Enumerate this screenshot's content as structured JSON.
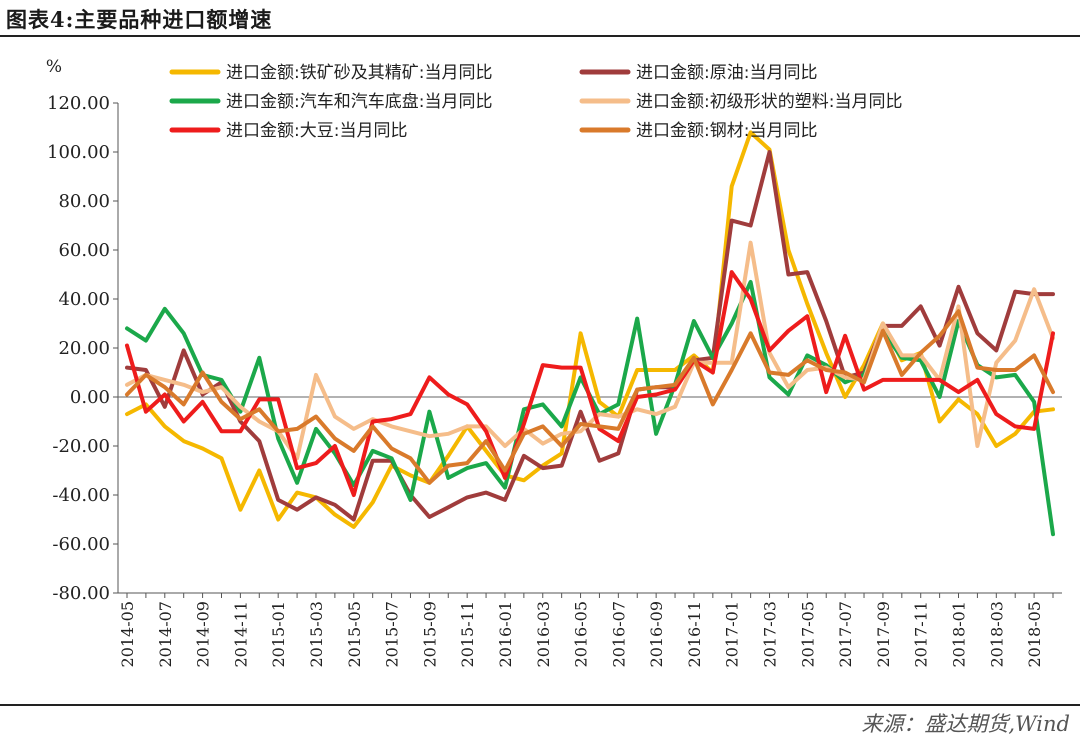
{
  "header": {
    "title": "图表4:主要品种进口额增速"
  },
  "footer": {
    "source": "来源：盛达期货,Wind"
  },
  "chart_data": {
    "type": "line",
    "title": "图表4:主要品种进口额增速",
    "ylabel": "%",
    "ylim": [
      -80,
      120
    ],
    "yticks": [
      -80,
      -60,
      -40,
      -20,
      0,
      20,
      40,
      60,
      80,
      100,
      120
    ],
    "ytick_labels": [
      "-80.00",
      "-60.00",
      "-40.00",
      "-20.00",
      "0.00",
      "20.00",
      "40.00",
      "60.00",
      "80.00",
      "100.00",
      "120.00"
    ],
    "categories": [
      "2014-05",
      "2014-06",
      "2014-07",
      "2014-08",
      "2014-09",
      "2014-10",
      "2014-11",
      "2014-12",
      "2015-01",
      "2015-02",
      "2015-03",
      "2015-04",
      "2015-05",
      "2015-06",
      "2015-07",
      "2015-08",
      "2015-09",
      "2015-10",
      "2015-11",
      "2015-12",
      "2016-01",
      "2016-02",
      "2016-03",
      "2016-04",
      "2016-05",
      "2016-06",
      "2016-07",
      "2016-08",
      "2016-09",
      "2016-10",
      "2016-11",
      "2016-12",
      "2017-01",
      "2017-02",
      "2017-03",
      "2017-04",
      "2017-05",
      "2017-06",
      "2017-07",
      "2017-08",
      "2017-09",
      "2017-10",
      "2017-11",
      "2017-12",
      "2018-01",
      "2018-02",
      "2018-03",
      "2018-04",
      "2018-05",
      "2018-06"
    ],
    "xtick_labels": [
      "2014-05",
      "2014-07",
      "2014-09",
      "2014-11",
      "2015-01",
      "2015-03",
      "2015-05",
      "2015-07",
      "2015-09",
      "2015-11",
      "2016-01",
      "2016-03",
      "2016-05",
      "2016-07",
      "2016-09",
      "2016-11",
      "2017-01",
      "2017-03",
      "2017-05",
      "2017-07",
      "2017-09",
      "2017-11",
      "2018-01",
      "2018-03",
      "2018-05"
    ],
    "grid": false,
    "legend_position": "top",
    "series": [
      {
        "name": "进口金额:铁矿砂及其精矿:当月同比",
        "color": "#f5b800",
        "values": [
          -7,
          -3,
          -12,
          -18,
          -21,
          -25,
          -46,
          -30,
          -50,
          -39,
          -41,
          -48,
          -53,
          -43,
          -28,
          -32,
          -35,
          -24,
          -12,
          -22,
          -32,
          -34,
          -28,
          -23,
          26,
          -2,
          -8,
          11,
          11,
          11,
          17,
          10,
          86,
          108,
          101,
          60,
          38,
          18,
          0,
          13,
          30,
          15,
          18,
          -10,
          -1,
          -7,
          -20,
          -15,
          -6,
          -5
        ]
      },
      {
        "name": "进口金额:原油:当月同比",
        "color": "#a03c3c",
        "values": [
          12,
          11,
          -4,
          19,
          1,
          6,
          -10,
          -18,
          -42,
          -46,
          -41,
          -44,
          -50,
          -26,
          -26,
          -40,
          -49,
          -45,
          -41,
          -39,
          -42,
          -24,
          -29,
          -28,
          -6,
          -26,
          -23,
          3,
          4,
          4,
          15,
          16,
          72,
          70,
          100,
          50,
          51,
          31,
          8,
          10,
          29,
          29,
          37,
          21,
          45,
          26,
          19,
          43,
          42,
          42
        ]
      },
      {
        "name": "进口金额:汽车和汽车底盘:当月同比",
        "color": "#1ba84a",
        "values": [
          28,
          23,
          36,
          26,
          9,
          7,
          -6,
          16,
          -17,
          -35,
          -13,
          -23,
          -36,
          -22,
          -25,
          -42,
          -6,
          -33,
          -29,
          -27,
          -37,
          -5,
          -3,
          -12,
          8,
          -7,
          -3,
          32,
          -15,
          5,
          31,
          16,
          30,
          47,
          8,
          1,
          17,
          13,
          6,
          9,
          27,
          16,
          15,
          0,
          31,
          13,
          8,
          9,
          -2,
          -56
        ]
      },
      {
        "name": "进口金额:初级形状的塑料:当月同比",
        "color": "#f5bd8a",
        "values": [
          5,
          9,
          7,
          5,
          2,
          4,
          -4,
          -10,
          -14,
          -25,
          9,
          -8,
          -13,
          -9,
          -12,
          -14,
          -16,
          -15,
          -12,
          -12,
          -20,
          -13,
          -19,
          -15,
          -14,
          -7,
          -8,
          -5,
          -7,
          -4,
          14,
          14,
          14,
          63,
          18,
          4,
          11,
          12,
          8,
          7,
          30,
          17,
          17,
          7,
          37,
          -20,
          14,
          23,
          44,
          24
        ]
      },
      {
        "name": "进口金额:大豆:当月同比",
        "color": "#ee1c1c",
        "values": [
          21,
          -6,
          1,
          -10,
          -2,
          -14,
          -14,
          -1,
          -1,
          -29,
          -27,
          -20,
          -40,
          -10,
          -9,
          -7,
          8,
          1,
          -3,
          -14,
          -33,
          -11,
          13,
          12,
          12,
          -13,
          -18,
          0,
          1,
          3,
          15,
          10,
          51,
          40,
          19,
          27,
          33,
          2,
          25,
          3,
          7,
          7,
          7,
          7,
          2,
          7,
          -7,
          -12,
          -13,
          26
        ]
      },
      {
        "name": "进口金额:钢材:当月同比",
        "color": "#d97a2b",
        "values": [
          1,
          9,
          4,
          -3,
          10,
          -2,
          -9,
          -5,
          -14,
          -13,
          -8,
          -17,
          -22,
          -12,
          -21,
          -25,
          -35,
          -28,
          -27,
          -18,
          -30,
          -15,
          -12,
          -20,
          -11,
          -12,
          -13,
          3,
          4,
          5,
          16,
          -3,
          11,
          26,
          10,
          9,
          15,
          11,
          10,
          6,
          27,
          9,
          18,
          25,
          35,
          12,
          11,
          11,
          17,
          2
        ]
      }
    ]
  }
}
